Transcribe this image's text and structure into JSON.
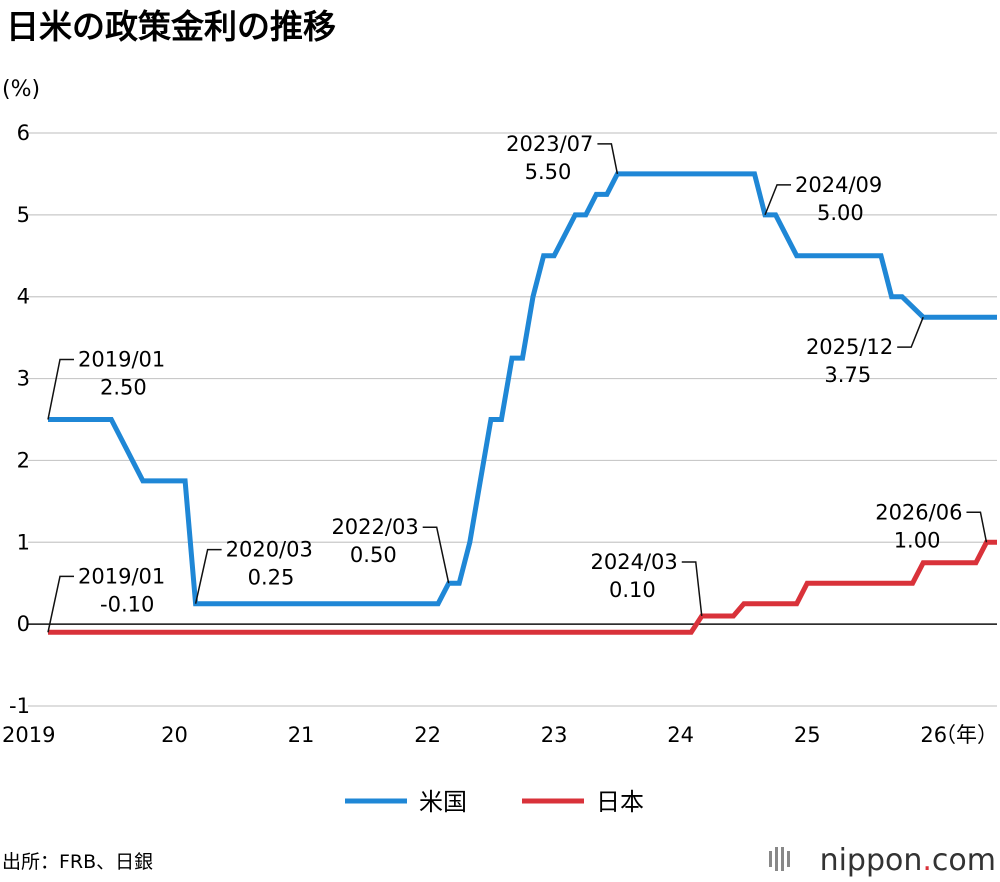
{
  "title": "日米の政策金利の推移",
  "unit_label": "(%)",
  "source": "出所：FRB、日銀",
  "brand": {
    "name": "nippon",
    "dot": ".",
    "tld": "com",
    "dot_color": "#d9323a"
  },
  "chart_data": {
    "type": "line",
    "title": "日米の政策金利の推移",
    "ylabel": "(%)",
    "xlabel": "(年)",
    "ylim": [
      -1,
      6
    ],
    "xlim": [
      "2019-01",
      "2026-07"
    ],
    "yticks": [
      "-1",
      "0",
      "1",
      "2",
      "3",
      "4",
      "5",
      "6"
    ],
    "xticks": [
      {
        "x": "2019-01",
        "label": "2019"
      },
      {
        "x": "2020-01",
        "label": "20"
      },
      {
        "x": "2021-01",
        "label": "21"
      },
      {
        "x": "2022-01",
        "label": "22"
      },
      {
        "x": "2023-01",
        "label": "23"
      },
      {
        "x": "2024-01",
        "label": "24"
      },
      {
        "x": "2025-01",
        "label": "25"
      },
      {
        "x": "2026-01",
        "label": "26"
      }
    ],
    "xunit": "（年）",
    "grid": true,
    "legend_position": "bottom",
    "series": [
      {
        "name": "米国",
        "color": "#1f87d6",
        "points": [
          [
            "2019-01",
            2.5
          ],
          [
            "2019-07",
            2.5
          ],
          [
            "2019-10",
            1.75
          ],
          [
            "2020-02",
            1.75
          ],
          [
            "2020-03",
            0.25
          ],
          [
            "2022-02",
            0.25
          ],
          [
            "2022-03",
            0.5
          ],
          [
            "2022-04",
            0.5
          ],
          [
            "2022-05",
            1.0
          ],
          [
            "2022-06",
            1.75
          ],
          [
            "2022-07",
            2.5
          ],
          [
            "2022-08",
            2.5
          ],
          [
            "2022-09",
            3.25
          ],
          [
            "2022-10",
            3.25
          ],
          [
            "2022-11",
            4.0
          ],
          [
            "2022-12",
            4.5
          ],
          [
            "2023-01",
            4.5
          ],
          [
            "2023-03",
            5.0
          ],
          [
            "2023-04",
            5.0
          ],
          [
            "2023-05",
            5.25
          ],
          [
            "2023-06",
            5.25
          ],
          [
            "2023-07",
            5.5
          ],
          [
            "2024-08",
            5.5
          ],
          [
            "2024-09",
            5.0
          ],
          [
            "2024-10",
            5.0
          ],
          [
            "2024-12",
            4.5
          ],
          [
            "2025-08",
            4.5
          ],
          [
            "2025-09",
            4.0
          ],
          [
            "2025-10",
            4.0
          ],
          [
            "2025-12",
            3.75
          ],
          [
            "2026-07",
            3.75
          ]
        ]
      },
      {
        "name": "日本",
        "color": "#d9323a",
        "points": [
          [
            "2019-01",
            -0.1
          ],
          [
            "2024-02",
            -0.1
          ],
          [
            "2024-03",
            0.1
          ],
          [
            "2024-06",
            0.1
          ],
          [
            "2024-07",
            0.25
          ],
          [
            "2024-12",
            0.25
          ],
          [
            "2025-01",
            0.5
          ],
          [
            "2025-11",
            0.5
          ],
          [
            "2025-12",
            0.75
          ],
          [
            "2026-05",
            0.75
          ],
          [
            "2026-06",
            1.0
          ],
          [
            "2026-07",
            1.0
          ]
        ]
      }
    ],
    "annotations": [
      {
        "x": "2019-01",
        "y": 2.5,
        "date": "2019/01",
        "value": "2.50"
      },
      {
        "x": "2019-01",
        "y": -0.1,
        "date": "2019/01",
        "value": "-0.10"
      },
      {
        "x": "2020-03",
        "y": 0.25,
        "date": "2020/03",
        "value": "0.25"
      },
      {
        "x": "2022-03",
        "y": 0.5,
        "date": "2022/03",
        "value": "0.50"
      },
      {
        "x": "2023-07",
        "y": 5.5,
        "date": "2023/07",
        "value": "5.50"
      },
      {
        "x": "2024-03",
        "y": 0.1,
        "date": "2024/03",
        "value": "0.10"
      },
      {
        "x": "2024-09",
        "y": 5.0,
        "date": "2024/09",
        "value": "5.00"
      },
      {
        "x": "2025-12",
        "y": 3.75,
        "date": "2025/12",
        "value": "3.75"
      },
      {
        "x": "2026-06",
        "y": 1.0,
        "date": "2026/06",
        "value": "1.00"
      }
    ]
  }
}
